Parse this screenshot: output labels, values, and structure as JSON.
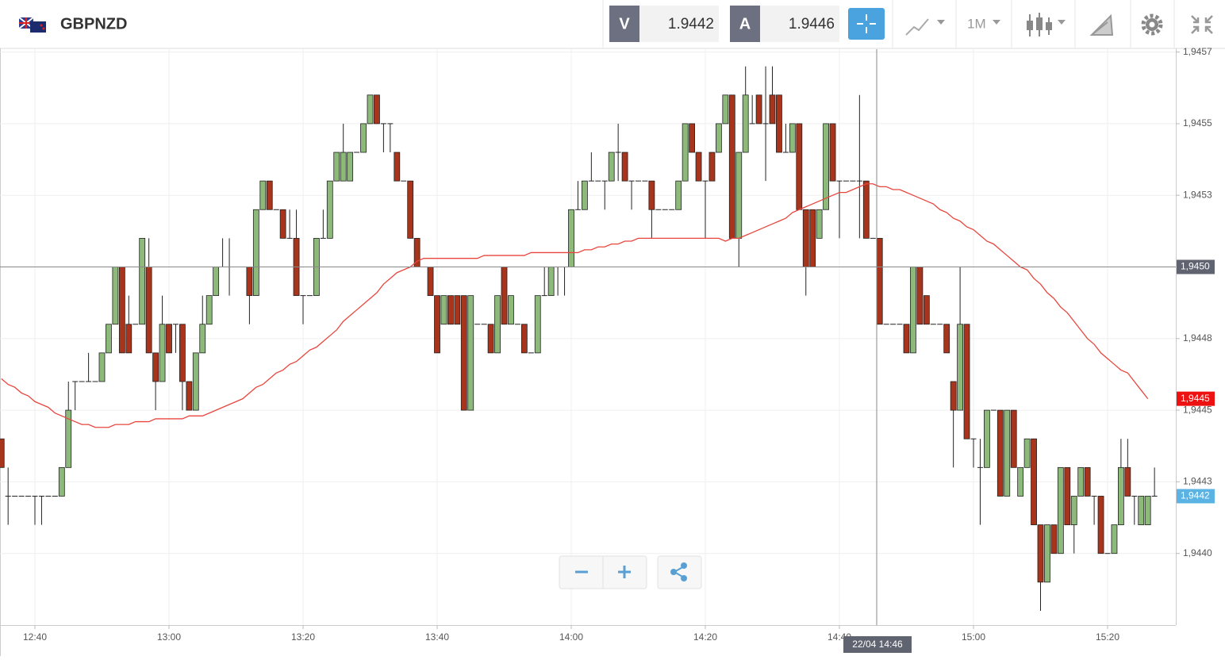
{
  "header": {
    "symbol": "GBPNZD",
    "bid_label": "V",
    "bid": 1.9442,
    "ask_label": "A",
    "ask": 1.9446,
    "timeframe": "1M"
  },
  "chart_data": {
    "type": "candlestick",
    "categories": [
      null,
      null,
      null,
      null,
      null,
      "12:40",
      null,
      null,
      null,
      null,
      null,
      null,
      null,
      null,
      null,
      null,
      null,
      null,
      null,
      null,
      null,
      null,
      null,
      null,
      null,
      "13:00",
      null,
      null,
      null,
      null,
      null,
      null,
      null,
      null,
      null,
      null,
      null,
      null,
      null,
      null,
      null,
      null,
      null,
      null,
      null,
      "13:20",
      null,
      null,
      null,
      null,
      null,
      null,
      null,
      null,
      null,
      null,
      null,
      null,
      null,
      null,
      null,
      null,
      null,
      null,
      null,
      "13:40",
      null,
      null,
      null,
      null,
      null,
      null,
      null,
      null,
      null,
      null,
      null,
      null,
      null,
      null,
      null,
      null,
      null,
      null,
      null,
      "14:00",
      null,
      null,
      null,
      null,
      null,
      null,
      null,
      null,
      null,
      null,
      null,
      null,
      null,
      null,
      null,
      null,
      null,
      null,
      null,
      "14:20",
      null,
      null,
      null,
      null,
      null,
      null,
      null,
      null,
      null,
      null,
      null,
      null,
      null,
      null,
      null,
      null,
      null,
      null,
      null,
      "14:40",
      null,
      null,
      null,
      null,
      null,
      null,
      null,
      null,
      null,
      null,
      null,
      null,
      null,
      null,
      null,
      null,
      null,
      null,
      null,
      "15:00",
      null,
      null,
      null,
      null,
      null,
      null,
      null,
      null,
      null,
      null,
      null,
      null,
      null,
      null,
      null,
      null,
      null,
      null,
      null,
      "15:20",
      null,
      null,
      null,
      null,
      null,
      null,
      null
    ],
    "ohlc": [
      [
        1.9444,
        1.9444,
        1.9443,
        1.9443
      ],
      [
        1.9442,
        1.9443,
        1.9441,
        1.9442
      ],
      [
        1.9442,
        1.9442,
        1.9442,
        1.9442
      ],
      [
        1.9442,
        1.9442,
        1.9442,
        1.9442
      ],
      [
        1.9442,
        1.9442,
        1.9442,
        1.9442
      ],
      [
        1.9442,
        1.9442,
        1.9441,
        1.9442
      ],
      [
        1.9442,
        1.9442,
        1.9441,
        1.9442
      ],
      [
        1.9442,
        1.9442,
        1.9442,
        1.9442
      ],
      [
        1.9442,
        1.9442,
        1.9442,
        1.9442
      ],
      [
        1.9442,
        1.9443,
        1.9442,
        1.9443
      ],
      [
        1.9443,
        1.9446,
        1.9443,
        1.9445
      ],
      [
        1.9446,
        1.9446,
        1.9445,
        1.9446
      ],
      [
        1.9446,
        1.9446,
        1.9446,
        1.9446
      ],
      [
        1.9446,
        1.9447,
        1.9446,
        1.9446
      ],
      [
        1.9446,
        1.9446,
        1.9446,
        1.9446
      ],
      [
        1.9446,
        1.9447,
        1.9446,
        1.9447
      ],
      [
        1.9447,
        1.9448,
        1.9447,
        1.9448
      ],
      [
        1.9448,
        1.945,
        1.9448,
        1.945
      ],
      [
        1.945,
        1.945,
        1.9447,
        1.9447
      ],
      [
        1.9448,
        1.9449,
        1.9447,
        1.9447
      ],
      [
        1.9448,
        1.9448,
        1.9448,
        1.9448
      ],
      [
        1.9448,
        1.9451,
        1.9448,
        1.9451
      ],
      [
        1.945,
        1.9451,
        1.9447,
        1.9447
      ],
      [
        1.9447,
        1.9447,
        1.9445,
        1.9446
      ],
      [
        1.9446,
        1.9449,
        1.9446,
        1.9448
      ],
      [
        1.9448,
        1.9448,
        1.9447,
        1.9447
      ],
      [
        1.9448,
        1.9448,
        1.9447,
        1.9448
      ],
      [
        1.9448,
        1.9448,
        1.9445,
        1.9446
      ],
      [
        1.9446,
        1.9446,
        1.9445,
        1.9445
      ],
      [
        1.9445,
        1.9447,
        1.9445,
        1.9447
      ],
      [
        1.9447,
        1.9449,
        1.9447,
        1.9448
      ],
      [
        1.9448,
        1.9449,
        1.9448,
        1.9449
      ],
      [
        1.9449,
        1.945,
        1.9449,
        1.945
      ],
      [
        1.945,
        1.9451,
        1.945,
        1.945
      ],
      [
        1.945,
        1.9451,
        1.9449,
        1.945
      ],
      [
        1.945,
        1.945,
        1.945,
        1.945
      ],
      [
        1.945,
        1.945,
        1.945,
        1.945
      ],
      [
        1.945,
        1.945,
        1.9448,
        1.9449
      ],
      [
        1.9449,
        1.9452,
        1.9449,
        1.9452
      ],
      [
        1.9452,
        1.9453,
        1.9452,
        1.9453
      ],
      [
        1.9453,
        1.9453,
        1.9452,
        1.9452
      ],
      [
        1.9452,
        1.9452,
        1.9452,
        1.9452
      ],
      [
        1.9452,
        1.9452,
        1.9451,
        1.9451
      ],
      [
        1.9451,
        1.9452,
        1.9451,
        1.9451
      ],
      [
        1.9451,
        1.9452,
        1.9449,
        1.9449
      ],
      [
        1.9449,
        1.9449,
        1.9448,
        1.9449
      ],
      [
        1.9449,
        1.9449,
        1.9449,
        1.9449
      ],
      [
        1.9449,
        1.9451,
        1.9449,
        1.9451
      ],
      [
        1.9451,
        1.9452,
        1.9451,
        1.9451
      ],
      [
        1.9451,
        1.9453,
        1.9451,
        1.9453
      ],
      [
        1.9453,
        1.9454,
        1.9453,
        1.9454
      ],
      [
        1.9453,
        1.9455,
        1.9453,
        1.9454
      ],
      [
        1.9453,
        1.9454,
        1.9453,
        1.9454
      ],
      [
        1.9454,
        1.9454,
        1.9454,
        1.9454
      ],
      [
        1.9454,
        1.9455,
        1.9454,
        1.9455
      ],
      [
        1.9455,
        1.9456,
        1.9455,
        1.9456
      ],
      [
        1.9456,
        1.9456,
        1.9455,
        1.9455
      ],
      [
        1.9455,
        1.9455,
        1.9454,
        1.9455
      ],
      [
        1.9455,
        1.9455,
        1.9454,
        1.9455
      ],
      [
        1.9454,
        1.9454,
        1.9453,
        1.9453
      ],
      [
        1.9453,
        1.9453,
        1.9453,
        1.9453
      ],
      [
        1.9453,
        1.9453,
        1.9451,
        1.9451
      ],
      [
        1.9451,
        1.9451,
        1.945,
        1.945
      ],
      [
        1.945,
        1.945,
        1.945,
        1.945
      ],
      [
        1.945,
        1.945,
        1.9449,
        1.9449
      ],
      [
        1.9449,
        1.9449,
        1.9447,
        1.9447
      ],
      [
        1.9448,
        1.9449,
        1.9448,
        1.9449
      ],
      [
        1.9449,
        1.9449,
        1.9448,
        1.9448
      ],
      [
        1.9449,
        1.9449,
        1.9448,
        1.9448
      ],
      [
        1.9449,
        1.9449,
        1.9445,
        1.9445
      ],
      [
        1.9445,
        1.9449,
        1.9445,
        1.9449
      ],
      [
        1.9448,
        1.9448,
        1.9448,
        1.9448
      ],
      [
        1.9448,
        1.9448,
        1.9448,
        1.9448
      ],
      [
        1.9448,
        1.9448,
        1.9447,
        1.9447
      ],
      [
        1.9447,
        1.9449,
        1.9447,
        1.9449
      ],
      [
        1.945,
        1.945,
        1.9448,
        1.9448
      ],
      [
        1.9448,
        1.9449,
        1.9448,
        1.9449
      ],
      [
        1.9448,
        1.9448,
        1.9448,
        1.9448
      ],
      [
        1.9448,
        1.9448,
        1.9447,
        1.9447
      ],
      [
        1.9447,
        1.9447,
        1.9447,
        1.9447
      ],
      [
        1.9447,
        1.9449,
        1.9447,
        1.9449
      ],
      [
        1.9449,
        1.945,
        1.9449,
        1.9449
      ],
      [
        1.9449,
        1.945,
        1.9449,
        1.945
      ],
      [
        1.945,
        1.945,
        1.9449,
        1.945
      ],
      [
        1.945,
        1.945,
        1.9449,
        1.945
      ],
      [
        1.945,
        1.9452,
        1.945,
        1.9452
      ],
      [
        1.9452,
        1.9453,
        1.9452,
        1.9452
      ],
      [
        1.9452,
        1.9453,
        1.9452,
        1.9453
      ],
      [
        1.9453,
        1.9454,
        1.9453,
        1.9453
      ],
      [
        1.9453,
        1.9453,
        1.9453,
        1.9453
      ],
      [
        1.9453,
        1.9453,
        1.9452,
        1.9453
      ],
      [
        1.9453,
        1.9454,
        1.9453,
        1.9454
      ],
      [
        1.9454,
        1.9455,
        1.9453,
        1.9454
      ],
      [
        1.9454,
        1.9454,
        1.9453,
        1.9453
      ],
      [
        1.9453,
        1.9453,
        1.9452,
        1.9453
      ],
      [
        1.9453,
        1.9453,
        1.9453,
        1.9453
      ],
      [
        1.9453,
        1.9453,
        1.9453,
        1.9453
      ],
      [
        1.9453,
        1.9453,
        1.9451,
        1.9452
      ],
      [
        1.9452,
        1.9452,
        1.9452,
        1.9452
      ],
      [
        1.9452,
        1.9452,
        1.9452,
        1.9452
      ],
      [
        1.9452,
        1.9452,
        1.9452,
        1.9452
      ],
      [
        1.9452,
        1.9453,
        1.9452,
        1.9453
      ],
      [
        1.9453,
        1.9455,
        1.9453,
        1.9455
      ],
      [
        1.9455,
        1.9455,
        1.9454,
        1.9454
      ],
      [
        1.9454,
        1.9454,
        1.9453,
        1.9453
      ],
      [
        1.9453,
        1.9453,
        1.9451,
        1.9453
      ],
      [
        1.9454,
        1.9454,
        1.9453,
        1.9453
      ],
      [
        1.9454,
        1.9455,
        1.9454,
        1.9455
      ],
      [
        1.9455,
        1.9456,
        1.9455,
        1.9456
      ],
      [
        1.9456,
        1.9456,
        1.9451,
        1.9451
      ],
      [
        1.9451,
        1.9454,
        1.945,
        1.9454
      ],
      [
        1.9454,
        1.9457,
        1.9454,
        1.9456
      ],
      [
        1.9455,
        1.9456,
        1.9455,
        1.9455
      ],
      [
        1.9456,
        1.9456,
        1.9455,
        1.9455
      ],
      [
        1.9455,
        1.9457,
        1.9453,
        1.9455
      ],
      [
        1.9456,
        1.9457,
        1.9455,
        1.9455
      ],
      [
        1.9456,
        1.9456,
        1.9454,
        1.9454
      ],
      [
        1.9454,
        1.9455,
        1.9454,
        1.9454
      ],
      [
        1.9454,
        1.9455,
        1.9454,
        1.9455
      ],
      [
        1.9455,
        1.9455,
        1.9452,
        1.9452
      ],
      [
        1.9452,
        1.9452,
        1.9449,
        1.945
      ],
      [
        1.9452,
        1.9452,
        1.945,
        1.945
      ],
      [
        1.9451,
        1.9452,
        1.9451,
        1.9452
      ],
      [
        1.9452,
        1.9455,
        1.9452,
        1.9455
      ],
      [
        1.9455,
        1.9455,
        1.9453,
        1.9453
      ],
      [
        1.9453,
        1.9453,
        1.9451,
        1.9453
      ],
      [
        1.9453,
        1.9453,
        1.9453,
        1.9453
      ],
      [
        1.9453,
        1.9453,
        1.9453,
        1.9453
      ],
      [
        1.9453,
        1.9456,
        1.9451,
        1.9453
      ],
      [
        1.9453,
        1.9453,
        1.9451,
        1.9451
      ],
      [
        1.9451,
        1.9451,
        1.9451,
        1.9451
      ],
      [
        1.9451,
        1.9451,
        1.9448,
        1.9448
      ],
      [
        1.9448,
        1.9448,
        1.9448,
        1.9448
      ],
      [
        1.9448,
        1.9448,
        1.9448,
        1.9448
      ],
      [
        1.9448,
        1.9448,
        1.9448,
        1.9448
      ],
      [
        1.9448,
        1.9448,
        1.9447,
        1.9447
      ],
      [
        1.9447,
        1.945,
        1.9447,
        1.945
      ],
      [
        1.945,
        1.945,
        1.9448,
        1.9448
      ],
      [
        1.9449,
        1.9449,
        1.9448,
        1.9448
      ],
      [
        1.9448,
        1.9448,
        1.9448,
        1.9448
      ],
      [
        1.9448,
        1.9448,
        1.9448,
        1.9448
      ],
      [
        1.9448,
        1.9448,
        1.9447,
        1.9447
      ],
      [
        1.9446,
        1.9446,
        1.9443,
        1.9445
      ],
      [
        1.9445,
        1.945,
        1.9445,
        1.9448
      ],
      [
        1.9448,
        1.9448,
        1.9444,
        1.9444
      ],
      [
        1.9444,
        1.9444,
        1.9443,
        1.9444
      ],
      [
        1.9443,
        1.9444,
        1.9441,
        1.9443
      ],
      [
        1.9443,
        1.9445,
        1.9443,
        1.9445
      ],
      [
        1.9445,
        1.9445,
        1.9445,
        1.9445
      ],
      [
        1.9445,
        1.9445,
        1.9442,
        1.9442
      ],
      [
        1.9442,
        1.9445,
        1.9442,
        1.9445
      ],
      [
        1.9445,
        1.9445,
        1.9443,
        1.9443
      ],
      [
        1.9442,
        1.9443,
        1.9442,
        1.9443
      ],
      [
        1.9443,
        1.9444,
        1.9443,
        1.9444
      ],
      [
        1.9444,
        1.9444,
        1.9441,
        1.9441
      ],
      [
        1.9441,
        1.9441,
        1.9438,
        1.9439
      ],
      [
        1.9439,
        1.9441,
        1.9439,
        1.9441
      ],
      [
        1.9441,
        1.9441,
        1.944,
        1.944
      ],
      [
        1.944,
        1.9443,
        1.944,
        1.9443
      ],
      [
        1.9443,
        1.9443,
        1.9441,
        1.9441
      ],
      [
        1.9441,
        1.9442,
        1.944,
        1.9442
      ],
      [
        1.9442,
        1.9443,
        1.9442,
        1.9443
      ],
      [
        1.9443,
        1.9443,
        1.9442,
        1.9442
      ],
      [
        1.9442,
        1.9442,
        1.9441,
        1.9442
      ],
      [
        1.9442,
        1.9442,
        1.944,
        1.944
      ],
      [
        1.944,
        1.944,
        1.944,
        1.944
      ],
      [
        1.944,
        1.9441,
        1.944,
        1.9441
      ],
      [
        1.9441,
        1.9444,
        1.9441,
        1.9443
      ],
      [
        1.9443,
        1.9444,
        1.9442,
        1.9442
      ],
      [
        1.9442,
        1.9442,
        1.9441,
        1.9442
      ],
      [
        1.9441,
        1.9442,
        1.9441,
        1.9442
      ],
      [
        1.9441,
        1.9442,
        1.9441,
        1.9442
      ],
      [
        1.9442,
        1.9443,
        1.9442,
        1.9442
      ]
    ],
    "ma": {
      "color": "#e8463c",
      "values": [
        1.94461,
        1.94459,
        1.94458,
        1.94456,
        1.94455,
        1.94453,
        1.94452,
        1.94451,
        1.94449,
        1.94448,
        1.94447,
        1.94446,
        1.94445,
        1.94445,
        1.94444,
        1.94444,
        1.94444,
        1.94445,
        1.94445,
        1.94445,
        1.94446,
        1.94446,
        1.94446,
        1.94447,
        1.94447,
        1.94447,
        1.94447,
        1.94447,
        1.94448,
        1.94448,
        1.94448,
        1.94449,
        1.9445,
        1.94451,
        1.94452,
        1.94453,
        1.94454,
        1.94456,
        1.94458,
        1.94459,
        1.94461,
        1.94463,
        1.94464,
        1.94466,
        1.94467,
        1.94469,
        1.94471,
        1.94472,
        1.94474,
        1.94476,
        1.94478,
        1.94481,
        1.94483,
        1.94485,
        1.94487,
        1.94489,
        1.94491,
        1.94494,
        1.94496,
        1.94498,
        1.94499,
        1.945,
        1.94502,
        1.94503,
        1.94503,
        1.94503,
        1.94503,
        1.94503,
        1.94503,
        1.94503,
        1.94503,
        1.94503,
        1.94504,
        1.94504,
        1.94504,
        1.94504,
        1.94504,
        1.94504,
        1.94504,
        1.94505,
        1.94505,
        1.94505,
        1.94505,
        1.94505,
        1.94505,
        1.94505,
        1.94505,
        1.94506,
        1.94506,
        1.94507,
        1.94507,
        1.94508,
        1.94508,
        1.94509,
        1.94509,
        1.9451,
        1.9451,
        1.9451,
        1.9451,
        1.9451,
        1.9451,
        1.9451,
        1.9451,
        1.9451,
        1.9451,
        1.9451,
        1.9451,
        1.9451,
        1.94509,
        1.9451,
        1.9451,
        1.94511,
        1.94512,
        1.94513,
        1.94514,
        1.94515,
        1.94516,
        1.94517,
        1.94519,
        1.9452,
        1.94521,
        1.94522,
        1.94523,
        1.94524,
        1.94525,
        1.94526,
        1.94526,
        1.94527,
        1.94528,
        1.94529,
        1.94529,
        1.94528,
        1.94528,
        1.94527,
        1.94527,
        1.94526,
        1.94525,
        1.94524,
        1.94523,
        1.94522,
        1.9452,
        1.94519,
        1.94517,
        1.94516,
        1.94514,
        1.94513,
        1.94511,
        1.94509,
        1.94508,
        1.94506,
        1.94504,
        1.94502,
        1.945,
        1.94499,
        1.94496,
        1.94494,
        1.94491,
        1.94489,
        1.94486,
        1.94484,
        1.94481,
        1.94478,
        1.94475,
        1.94473,
        1.9447,
        1.94468,
        1.94466,
        1.94464,
        1.94463,
        1.9446,
        1.94457,
        1.94454,
        null
      ]
    },
    "up_color": "#8db97b",
    "down_color": "#a8341c",
    "ylim": [
      1.94375,
      1.94576
    ],
    "yticks": [
      {
        "value": 1.94575,
        "label": "1,9457"
      },
      {
        "value": 1.9455,
        "label": "1,9455"
      },
      {
        "value": 1.94525,
        "label": "1,9453"
      },
      {
        "value": 1.94475,
        "label": "1,9448"
      },
      {
        "value": 1.9445,
        "label": "1,9445"
      },
      {
        "value": 1.94425,
        "label": "1,9443"
      },
      {
        "value": 1.944,
        "label": "1,9440"
      }
    ],
    "grid": true,
    "crosshair_price": {
      "value": 1.945,
      "label": "1,9450"
    },
    "crosshair_time": "22/04 14:46",
    "ma_label": {
      "value": 1.94454,
      "label": "1,9445"
    },
    "last_label": {
      "value": 1.9442,
      "label": "1,9442"
    }
  }
}
